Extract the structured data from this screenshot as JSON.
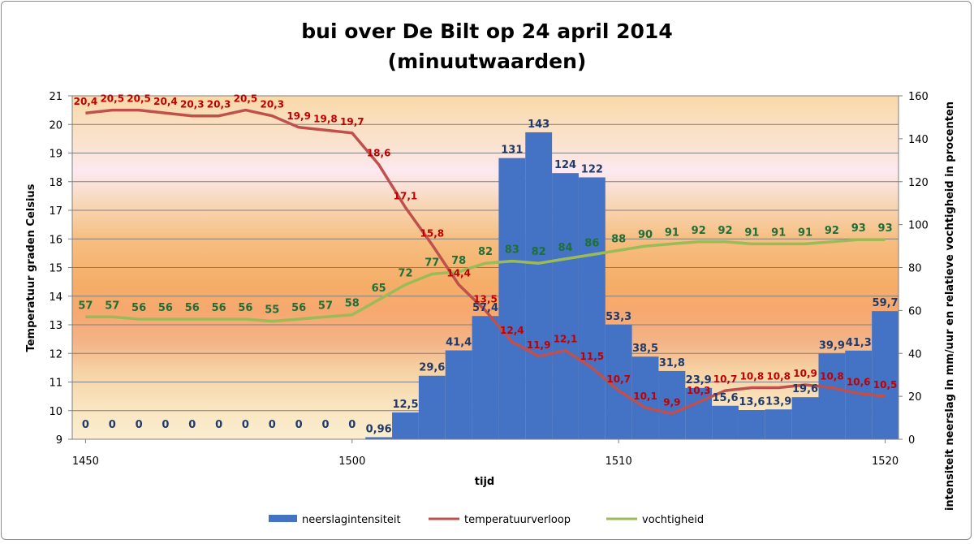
{
  "chart_data": {
    "type": "bar+line",
    "title": "bui over De Bilt op 24 april 2014",
    "subtitle": "(minuutwaarden)",
    "xlabel": "tijd",
    "ylabel_left": "Temperatuur graden Celsius",
    "ylabel_right": "intensiteit neerslag in mm/uur en relatieve vochtigheid in procenten",
    "x_ticks": [
      "1450",
      "1500",
      "1510",
      "1520"
    ],
    "x_tick_minutes": [
      0,
      10,
      20,
      30
    ],
    "ylim_left": [
      9,
      21
    ],
    "yticks_left": [
      "9",
      "10",
      "11",
      "12",
      "13",
      "14",
      "15",
      "16",
      "17",
      "18",
      "19",
      "20",
      "21"
    ],
    "ylim_right": [
      0,
      160
    ],
    "yticks_right": [
      "0",
      "20",
      "40",
      "60",
      "80",
      "100",
      "120",
      "140",
      "160"
    ],
    "grid": true,
    "legend_position": "bottom",
    "x_minutes": [
      0,
      1,
      2,
      3,
      4,
      5,
      6,
      7,
      8,
      9,
      10,
      11,
      12,
      13,
      14,
      15,
      16,
      17,
      18,
      19,
      20,
      21,
      22,
      23,
      24,
      25,
      26,
      27,
      28,
      29,
      30
    ],
    "series": [
      {
        "name": "neerslagintensiteit",
        "kind": "bar",
        "axis": "right",
        "color": "#4472C4",
        "values": [
          0,
          0,
          0,
          0,
          0,
          0,
          0,
          0,
          0,
          0,
          0,
          0.96,
          12.5,
          29.6,
          41.4,
          57.4,
          131,
          143,
          124,
          122,
          53.3,
          38.5,
          31.8,
          23.9,
          15.6,
          13.6,
          13.9,
          19.6,
          39.9,
          41.3,
          59.7
        ],
        "labels": [
          "0",
          "0",
          "0",
          "0",
          "0",
          "0",
          "0",
          "0",
          "0",
          "0",
          "0",
          "0,96",
          "12,5",
          "29,6",
          "41,4",
          "57,4",
          "131",
          "143",
          "124",
          "122",
          "53,3",
          "38,5",
          "31,8",
          "23,9",
          "15,6",
          "13,6",
          "13,9",
          "19,6",
          "39,9",
          "41,3",
          "59,7"
        ]
      },
      {
        "name": "temperatuurverloop",
        "kind": "line",
        "axis": "left",
        "color": "#C0504D",
        "values": [
          20.4,
          20.5,
          20.5,
          20.4,
          20.3,
          20.3,
          20.5,
          20.3,
          19.9,
          19.8,
          19.7,
          18.6,
          17.1,
          15.8,
          14.4,
          13.5,
          12.4,
          11.9,
          12.1,
          11.5,
          10.7,
          10.1,
          9.9,
          10.3,
          10.7,
          10.8,
          10.8,
          10.9,
          10.8,
          10.6,
          10.5
        ],
        "labels": [
          "20,4",
          "20,5",
          "20,5",
          "20,4",
          "20,3",
          "20,3",
          "20,5",
          "20,3",
          "19,9",
          "19,8",
          "19,7",
          "18,6",
          "17,1",
          "15,8",
          "14,4",
          "13,5",
          "12,4",
          "11,9",
          "12,1",
          "11,5",
          "10,7",
          "10,1",
          "9,9",
          "10,3",
          "10,7",
          "10,8",
          "10,8",
          "10,9",
          "10,8",
          "10,6",
          "10,5"
        ]
      },
      {
        "name": "vochtigheid",
        "kind": "line",
        "axis": "right",
        "color": "#9BBB59",
        "values": [
          57,
          57,
          56,
          56,
          56,
          56,
          56,
          55,
          56,
          57,
          58,
          65,
          72,
          77,
          78,
          82,
          83,
          82,
          84,
          86,
          88,
          90,
          91,
          92,
          92,
          91,
          91,
          91,
          92,
          93,
          93
        ],
        "labels": [
          "57",
          "57",
          "56",
          "56",
          "56",
          "56",
          "56",
          "55",
          "56",
          "57",
          "58",
          "65",
          "72",
          "77",
          "78",
          "82",
          "83",
          "82",
          "84",
          "86",
          "88",
          "90",
          "91",
          "92",
          "92",
          "91",
          "91",
          "91",
          "92",
          "93",
          "93"
        ]
      }
    ]
  }
}
